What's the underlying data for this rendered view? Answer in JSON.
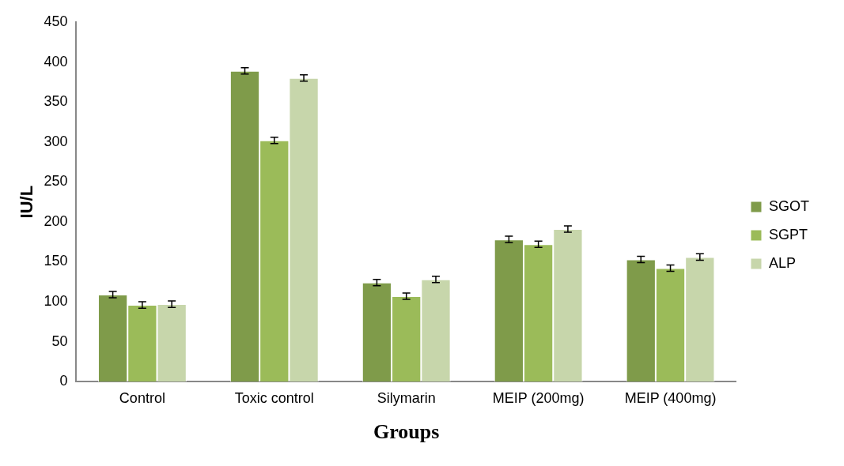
{
  "chart_data": {
    "type": "bar",
    "xlabel": "Groups",
    "ylabel": "IU/L",
    "categories": [
      "Control",
      "Toxic control",
      "Silymarin",
      "MEIP (200mg)",
      "MEIP (400mg)"
    ],
    "series": [
      {
        "name": "SGOT",
        "color": "#7f9b4a",
        "values": [
          109,
          389,
          124,
          178,
          153
        ],
        "errors": [
          4,
          4,
          4,
          4,
          4
        ]
      },
      {
        "name": "SGPT",
        "color": "#9bbb59",
        "values": [
          96,
          302,
          107,
          172,
          142
        ],
        "errors": [
          4,
          4,
          4,
          4,
          4
        ]
      },
      {
        "name": "ALP",
        "color": "#c7d6ab",
        "values": [
          97,
          380,
          128,
          191,
          156
        ],
        "errors": [
          4,
          4,
          4,
          4,
          4
        ]
      }
    ],
    "ylim": [
      0,
      450
    ],
    "yticks": [
      0,
      50,
      100,
      150,
      200,
      250,
      300,
      350,
      400,
      450
    ],
    "grid": false,
    "legend": "right"
  }
}
